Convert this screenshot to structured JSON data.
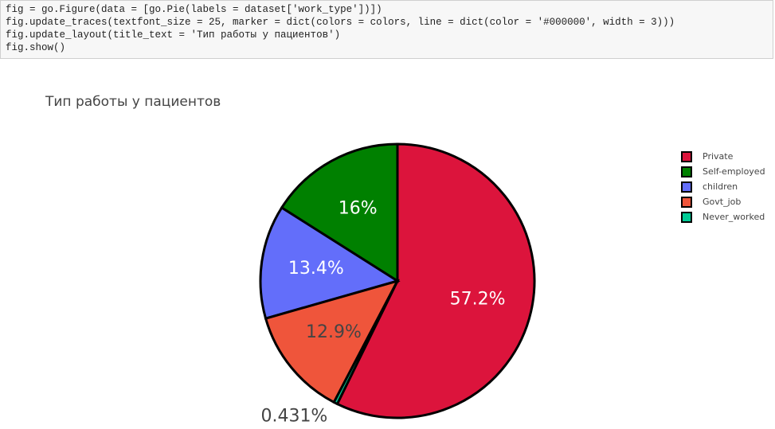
{
  "code": [
    "fig = go.Figure(data = [go.Pie(labels = dataset['work_type'])])",
    "fig.update_traces(textfont_size = 25, marker = dict(colors = colors, line = dict(color = '#000000', width = 3)))",
    "fig.update_layout(title_text = 'Тип работы у пациентов')",
    "fig.show()"
  ],
  "chart_data": {
    "type": "pie",
    "title": "Тип работы у пациентов",
    "categories": [
      "Private",
      "Self-employed",
      "children",
      "Govt_job",
      "Never_worked"
    ],
    "values": [
      57.2,
      16,
      13.4,
      12.9,
      0.431
    ],
    "value_labels": [
      "57.2%",
      "16%",
      "13.4%",
      "12.9%",
      "0.431%"
    ],
    "colors": [
      "#dc143c",
      "#008000",
      "#636efa",
      "#ef553b",
      "#00cc96"
    ],
    "line_color": "#000000",
    "legend": "top-right"
  }
}
